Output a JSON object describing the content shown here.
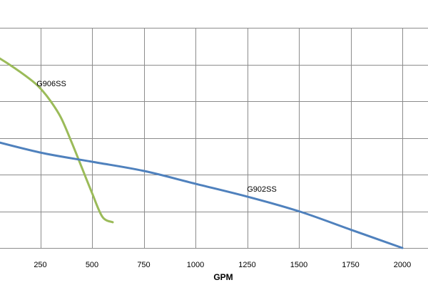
{
  "chart_data": {
    "type": "line",
    "xlabel": "GPM",
    "ylabel": "",
    "xlim": [
      -200,
      2000
    ],
    "ylim": [
      0,
      6
    ],
    "xticks": [
      250,
      500,
      750,
      1000,
      1250,
      1500,
      1750,
      2000
    ],
    "x_grid_lines": [
      -200,
      25,
      250,
      500,
      750,
      1000,
      1250,
      1500,
      1750,
      2000
    ],
    "y_grid_lines": [
      0,
      1,
      2,
      3,
      4,
      5,
      6
    ],
    "grid": true,
    "series": [
      {
        "name": "G906SS",
        "color": "#9BBB59",
        "x": [
          0,
          100,
          200,
          250,
          300,
          350,
          400,
          450,
          500,
          550,
          600
        ],
        "y": [
          5.35,
          5.0,
          4.6,
          4.35,
          4.0,
          3.55,
          2.9,
          2.2,
          1.5,
          0.85,
          0.7
        ]
      },
      {
        "name": "G902SS",
        "color": "#4F81BD",
        "x": [
          0,
          250,
          500,
          750,
          1000,
          1250,
          1500,
          1750,
          2000
        ],
        "y": [
          2.95,
          2.6,
          2.35,
          2.1,
          1.75,
          1.4,
          1.0,
          0.5,
          0.0
        ]
      }
    ]
  }
}
